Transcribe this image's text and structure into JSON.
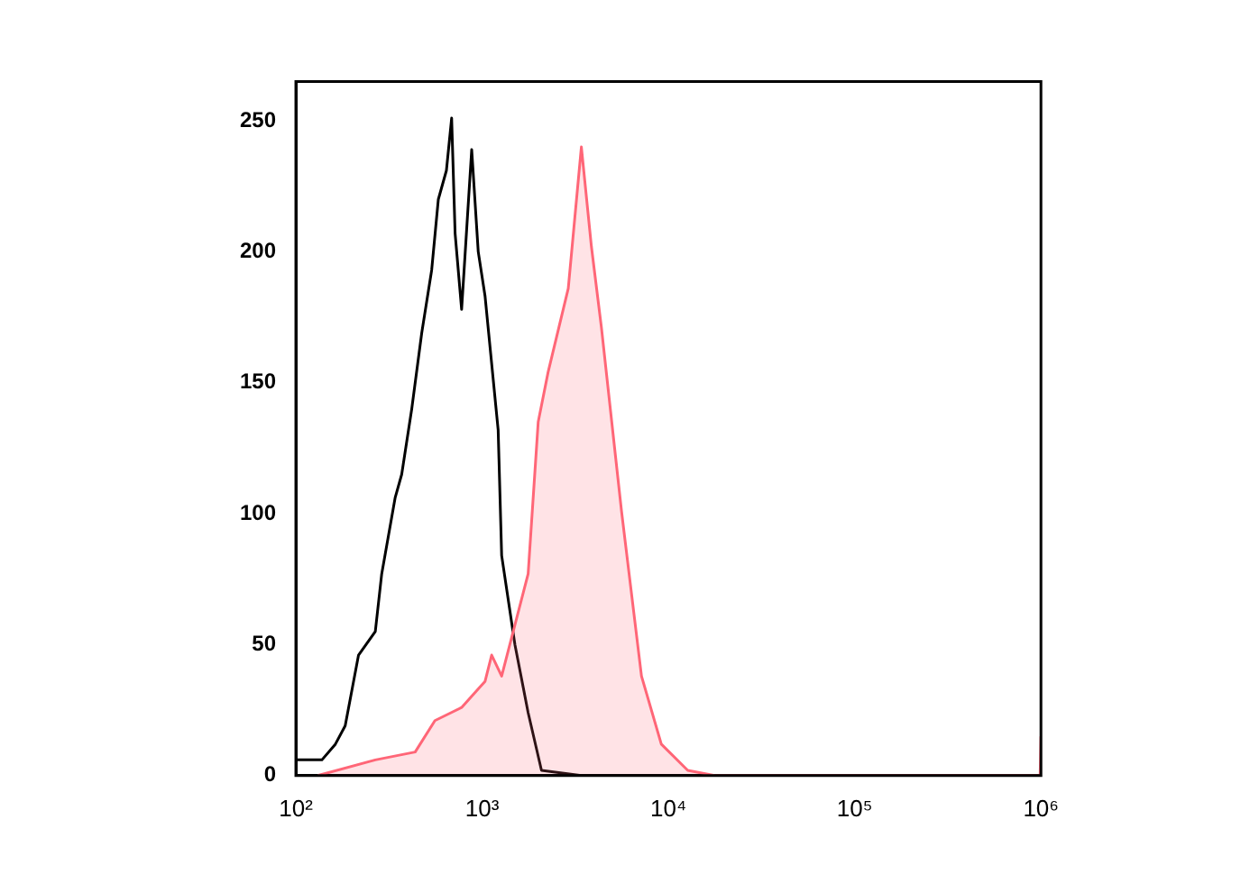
{
  "chart_data": {
    "type": "line",
    "log": "x",
    "grid": false,
    "legend": false,
    "marker": "none",
    "line_style": "solid",
    "xlim": [
      100,
      1000000
    ],
    "ylim": [
      0,
      265
    ],
    "xticks": [
      {
        "value": 100,
        "label": "10²"
      },
      {
        "value": 1000,
        "label": "10³"
      },
      {
        "value": 10000,
        "label": "10⁴"
      },
      {
        "value": 100000,
        "label": "10⁵"
      },
      {
        "value": 1000000,
        "label": "10⁶"
      }
    ],
    "yticks": [
      0,
      50,
      100,
      150,
      200,
      250
    ],
    "series": [
      {
        "type": "area",
        "color": "#ff6677",
        "x": [
          131,
          267,
          437,
          558,
          776,
          1037,
          1125,
          1273,
          1766,
          2000,
          2260,
          2900,
          3410,
          3860,
          4370,
          5600,
          7170,
          9160,
          12700,
          17700,
          990000,
          1000000
        ],
        "values": [
          0,
          6,
          9,
          21,
          26,
          36,
          46,
          38,
          77,
          135,
          154,
          186,
          240,
          202,
          171,
          101,
          38,
          12,
          2,
          0,
          0,
          15
        ]
      },
      {
        "type": "line",
        "color": "#000000",
        "x": [
          100,
          138,
          163,
          184,
          217,
          267,
          289,
          341,
          370,
          419,
          474,
          536,
          582,
          643,
          686,
          716,
          776,
          879,
          953,
          1037,
          1219,
          1273,
          1500,
          1766,
          2083,
          3410
        ],
        "values": [
          6,
          6,
          12,
          19,
          46,
          55,
          77,
          106,
          115,
          140,
          169,
          193,
          220,
          231,
          251,
          207,
          178,
          239,
          200,
          183,
          132,
          84,
          50,
          24,
          2,
          0
        ]
      }
    ]
  }
}
